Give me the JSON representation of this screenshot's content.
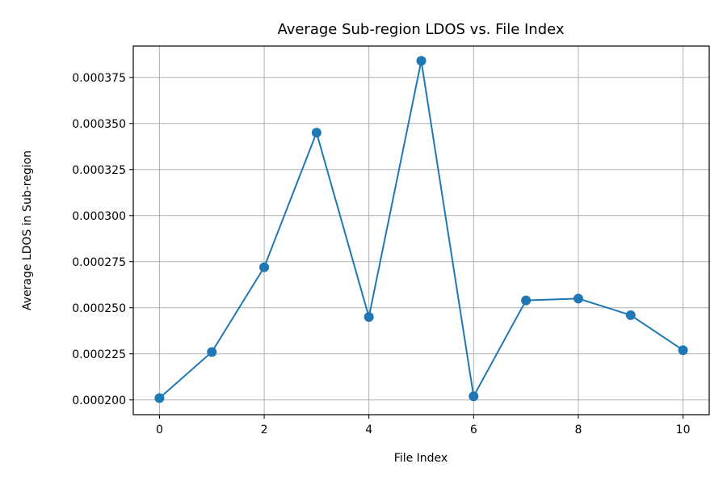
{
  "chart_data": {
    "type": "line",
    "title": "Average Sub-region LDOS vs. File Index",
    "xlabel": "File Index",
    "ylabel": "Average LDOS in Sub-region",
    "x": [
      0,
      1,
      2,
      3,
      4,
      5,
      6,
      7,
      8,
      9,
      10
    ],
    "series": [
      {
        "values": [
          0.000201,
          0.000226,
          0.000272,
          0.000345,
          0.000245,
          0.000384,
          0.000202,
          0.000254,
          0.000255,
          0.000246,
          0.000227
        ],
        "color": "#1f77b4",
        "marker": "circle"
      }
    ],
    "xlim": [
      -0.5,
      10.5
    ],
    "ylim": [
      0.000192,
      0.000392
    ],
    "xticks": [
      0,
      2,
      4,
      6,
      8,
      10
    ],
    "xtick_labels": [
      "0",
      "2",
      "4",
      "6",
      "8",
      "10"
    ],
    "yticks": [
      0.0002,
      0.000225,
      0.00025,
      0.000275,
      0.0003,
      0.000325,
      0.00035,
      0.000375
    ],
    "ytick_labels": [
      "0.000200",
      "0.000225",
      "0.000250",
      "0.000275",
      "0.000300",
      "0.000325",
      "0.000350",
      "0.000375"
    ],
    "grid": true
  }
}
